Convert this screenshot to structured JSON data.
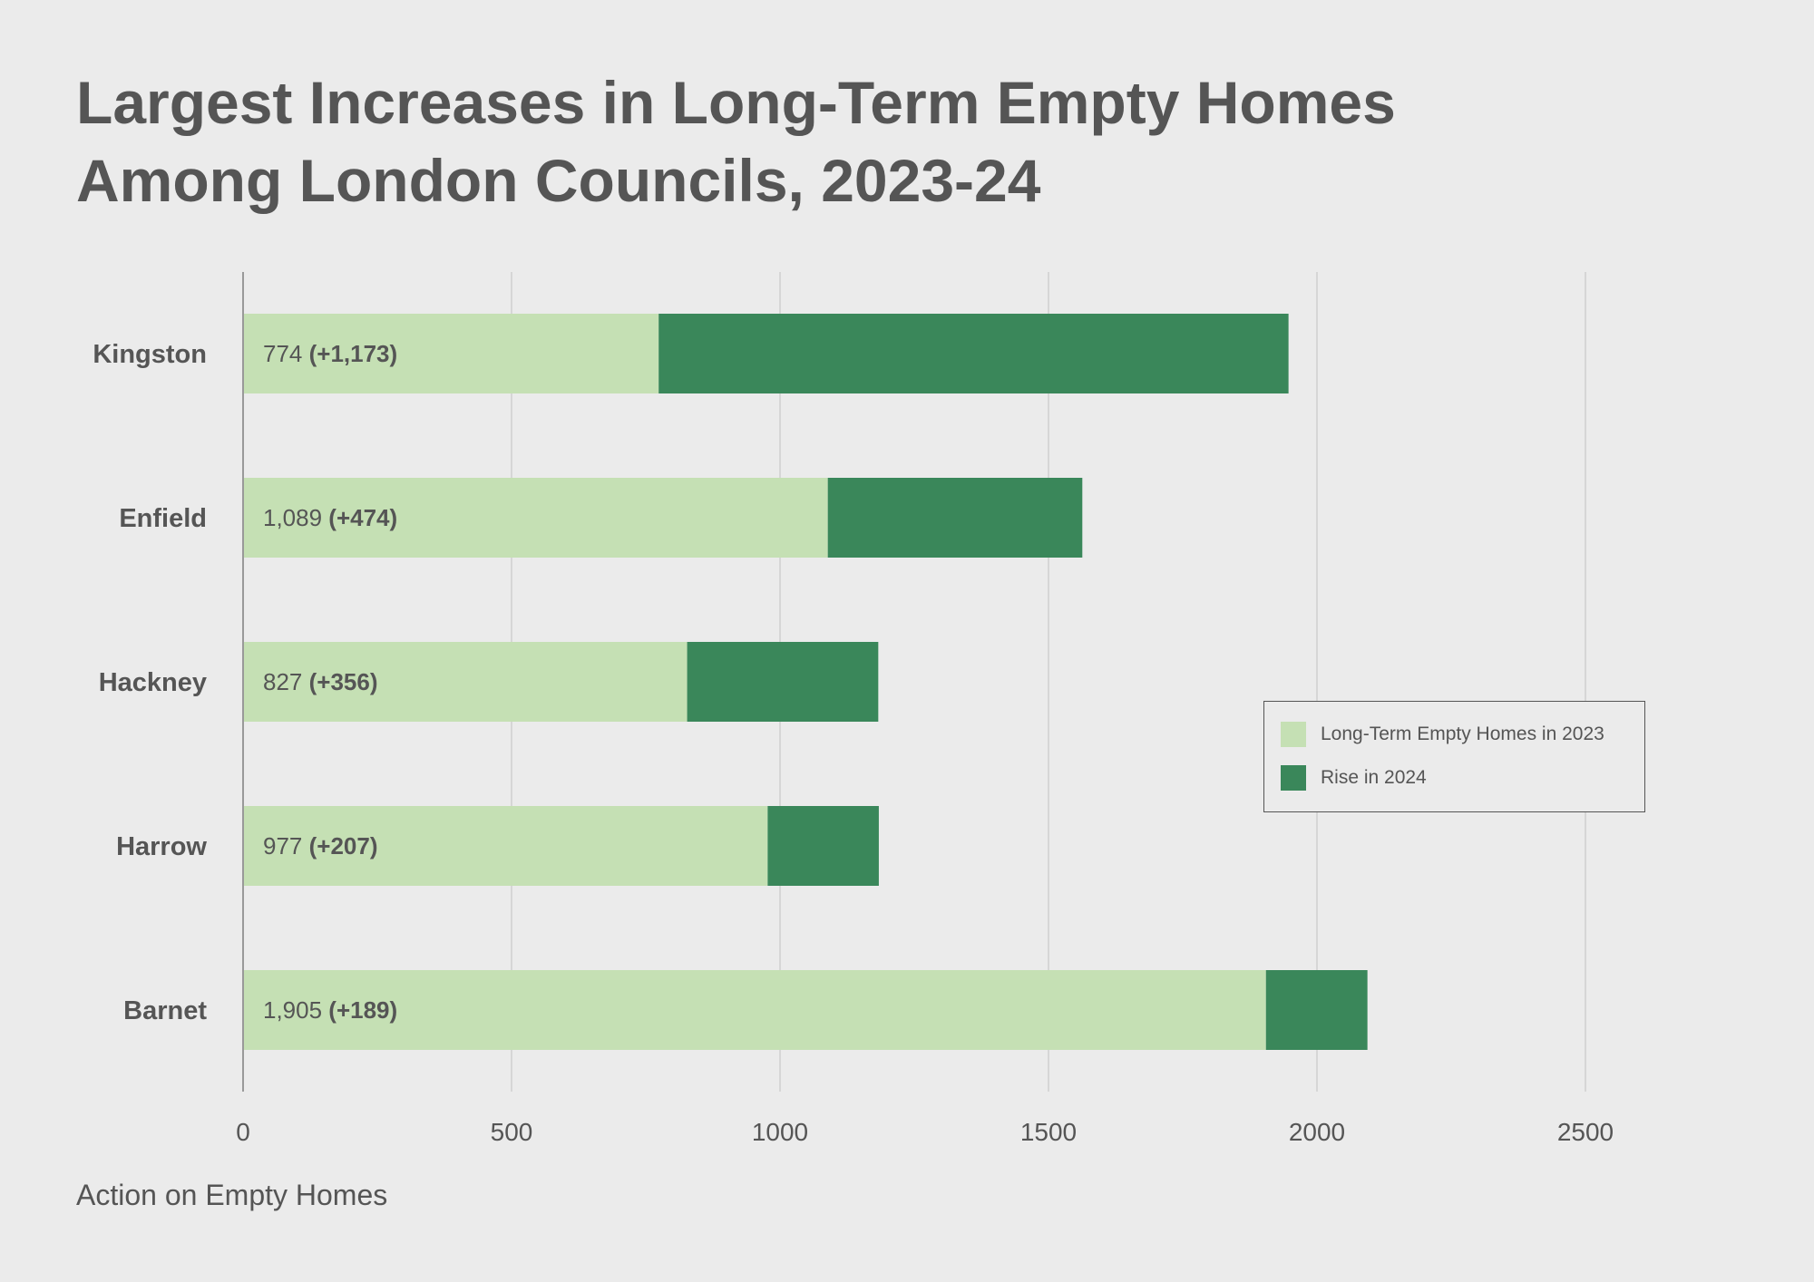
{
  "title_lines": [
    "Largest Increases in Long-Term Empty Homes",
    "Among London Councils, 2023-24"
  ],
  "source": "Action on Empty Homes",
  "colors": {
    "base": "#c5e0b4",
    "rise": "#3a875a",
    "text": "#555555",
    "grid": "#d6d6d6",
    "background": "#ebebeb"
  },
  "legend": [
    {
      "label": "Long-Term Empty Homes in 2023",
      "color": "#c5e0b4"
    },
    {
      "label": "Rise in 2024",
      "color": "#3a875a"
    }
  ],
  "chart_data": {
    "type": "bar",
    "orientation": "horizontal",
    "stacked": true,
    "categories": [
      "Kingston",
      "Enfield",
      "Hackney",
      "Harrow",
      "Barnet"
    ],
    "series": [
      {
        "name": "Long-Term Empty Homes in 2023",
        "values": [
          774,
          1089,
          827,
          977,
          1905
        ]
      },
      {
        "name": "Rise in 2024",
        "values": [
          1173,
          474,
          356,
          207,
          189
        ]
      }
    ],
    "data_labels": [
      {
        "base": "774",
        "rise": "(+1,173)"
      },
      {
        "base": "1,089",
        "rise": "(+474)"
      },
      {
        "base": "827",
        "rise": "(+356)"
      },
      {
        "base": "977",
        "rise": "(+207)"
      },
      {
        "base": "1,905",
        "rise": "(+189)"
      }
    ],
    "x_ticks": [
      "0",
      "500",
      "1000",
      "1500",
      "2000",
      "2500"
    ],
    "xlim": [
      0,
      2500
    ],
    "grid": true,
    "legend_position": "right"
  }
}
